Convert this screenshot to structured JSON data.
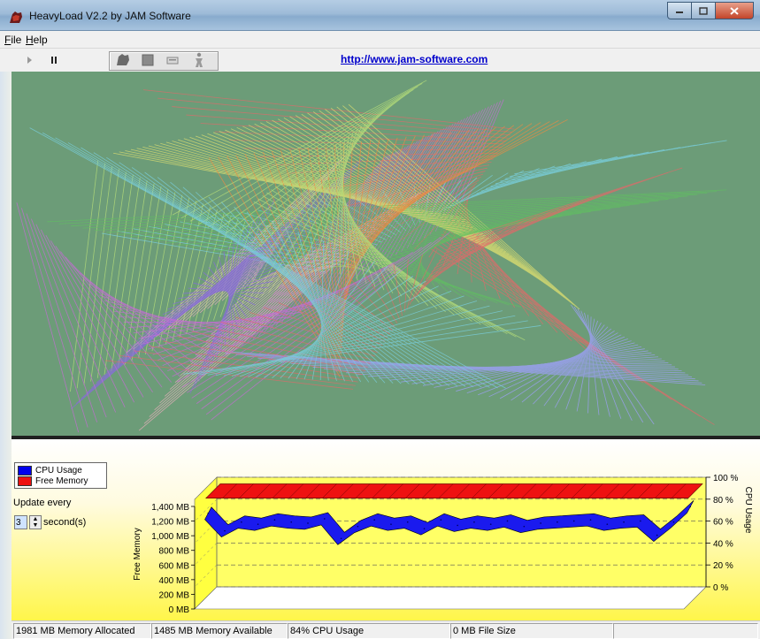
{
  "window": {
    "title": "HeavyLoad V2.2 by JAM Software"
  },
  "menu": [
    "File",
    "Help"
  ],
  "toolbar": {
    "url": "http://www.jam-software.com"
  },
  "legend": {
    "cpu": {
      "label": "CPU Usage",
      "color": "#0000ee"
    },
    "mem": {
      "label": "Free Memory",
      "color": "#ee1111"
    }
  },
  "update": {
    "label": "Update every",
    "value": "3",
    "unit": "second(s)"
  },
  "chart_data": {
    "type": "area",
    "y_left": {
      "label": "Free Memory",
      "ticks": [
        "0 MB",
        "200 MB",
        "400 MB",
        "600 MB",
        "800 MB",
        "1,000 MB",
        "1,200 MB",
        "1,400 MB"
      ]
    },
    "y_right": {
      "label": "CPU Usage",
      "ticks": [
        "0 %",
        "20 %",
        "40 %",
        "60 %",
        "80 %",
        "100 %"
      ]
    },
    "series": [
      {
        "name": "Free Memory",
        "values": [
          1485,
          1485,
          1485,
          1485,
          1485,
          1485,
          1485,
          1485,
          1485,
          1485,
          1485,
          1485,
          1485,
          1485,
          1485,
          1485,
          1485,
          1485,
          1485,
          1485,
          1485,
          1485,
          1485,
          1485,
          1485,
          1485,
          1485,
          1485,
          1485,
          1485
        ]
      },
      {
        "name": "CPU Usage",
        "values": [
          78,
          62,
          70,
          68,
          72,
          70,
          69,
          73,
          55,
          66,
          72,
          68,
          70,
          64,
          72,
          67,
          70,
          68,
          71,
          66,
          69,
          70,
          71,
          72,
          68,
          70,
          71,
          58,
          70,
          84
        ]
      }
    ]
  },
  "status": {
    "allocated": "1981 MB Memory Allocated",
    "available": "1485 MB Memory Available",
    "cpu": "84% CPU Usage",
    "file": "0 MB File Size"
  }
}
